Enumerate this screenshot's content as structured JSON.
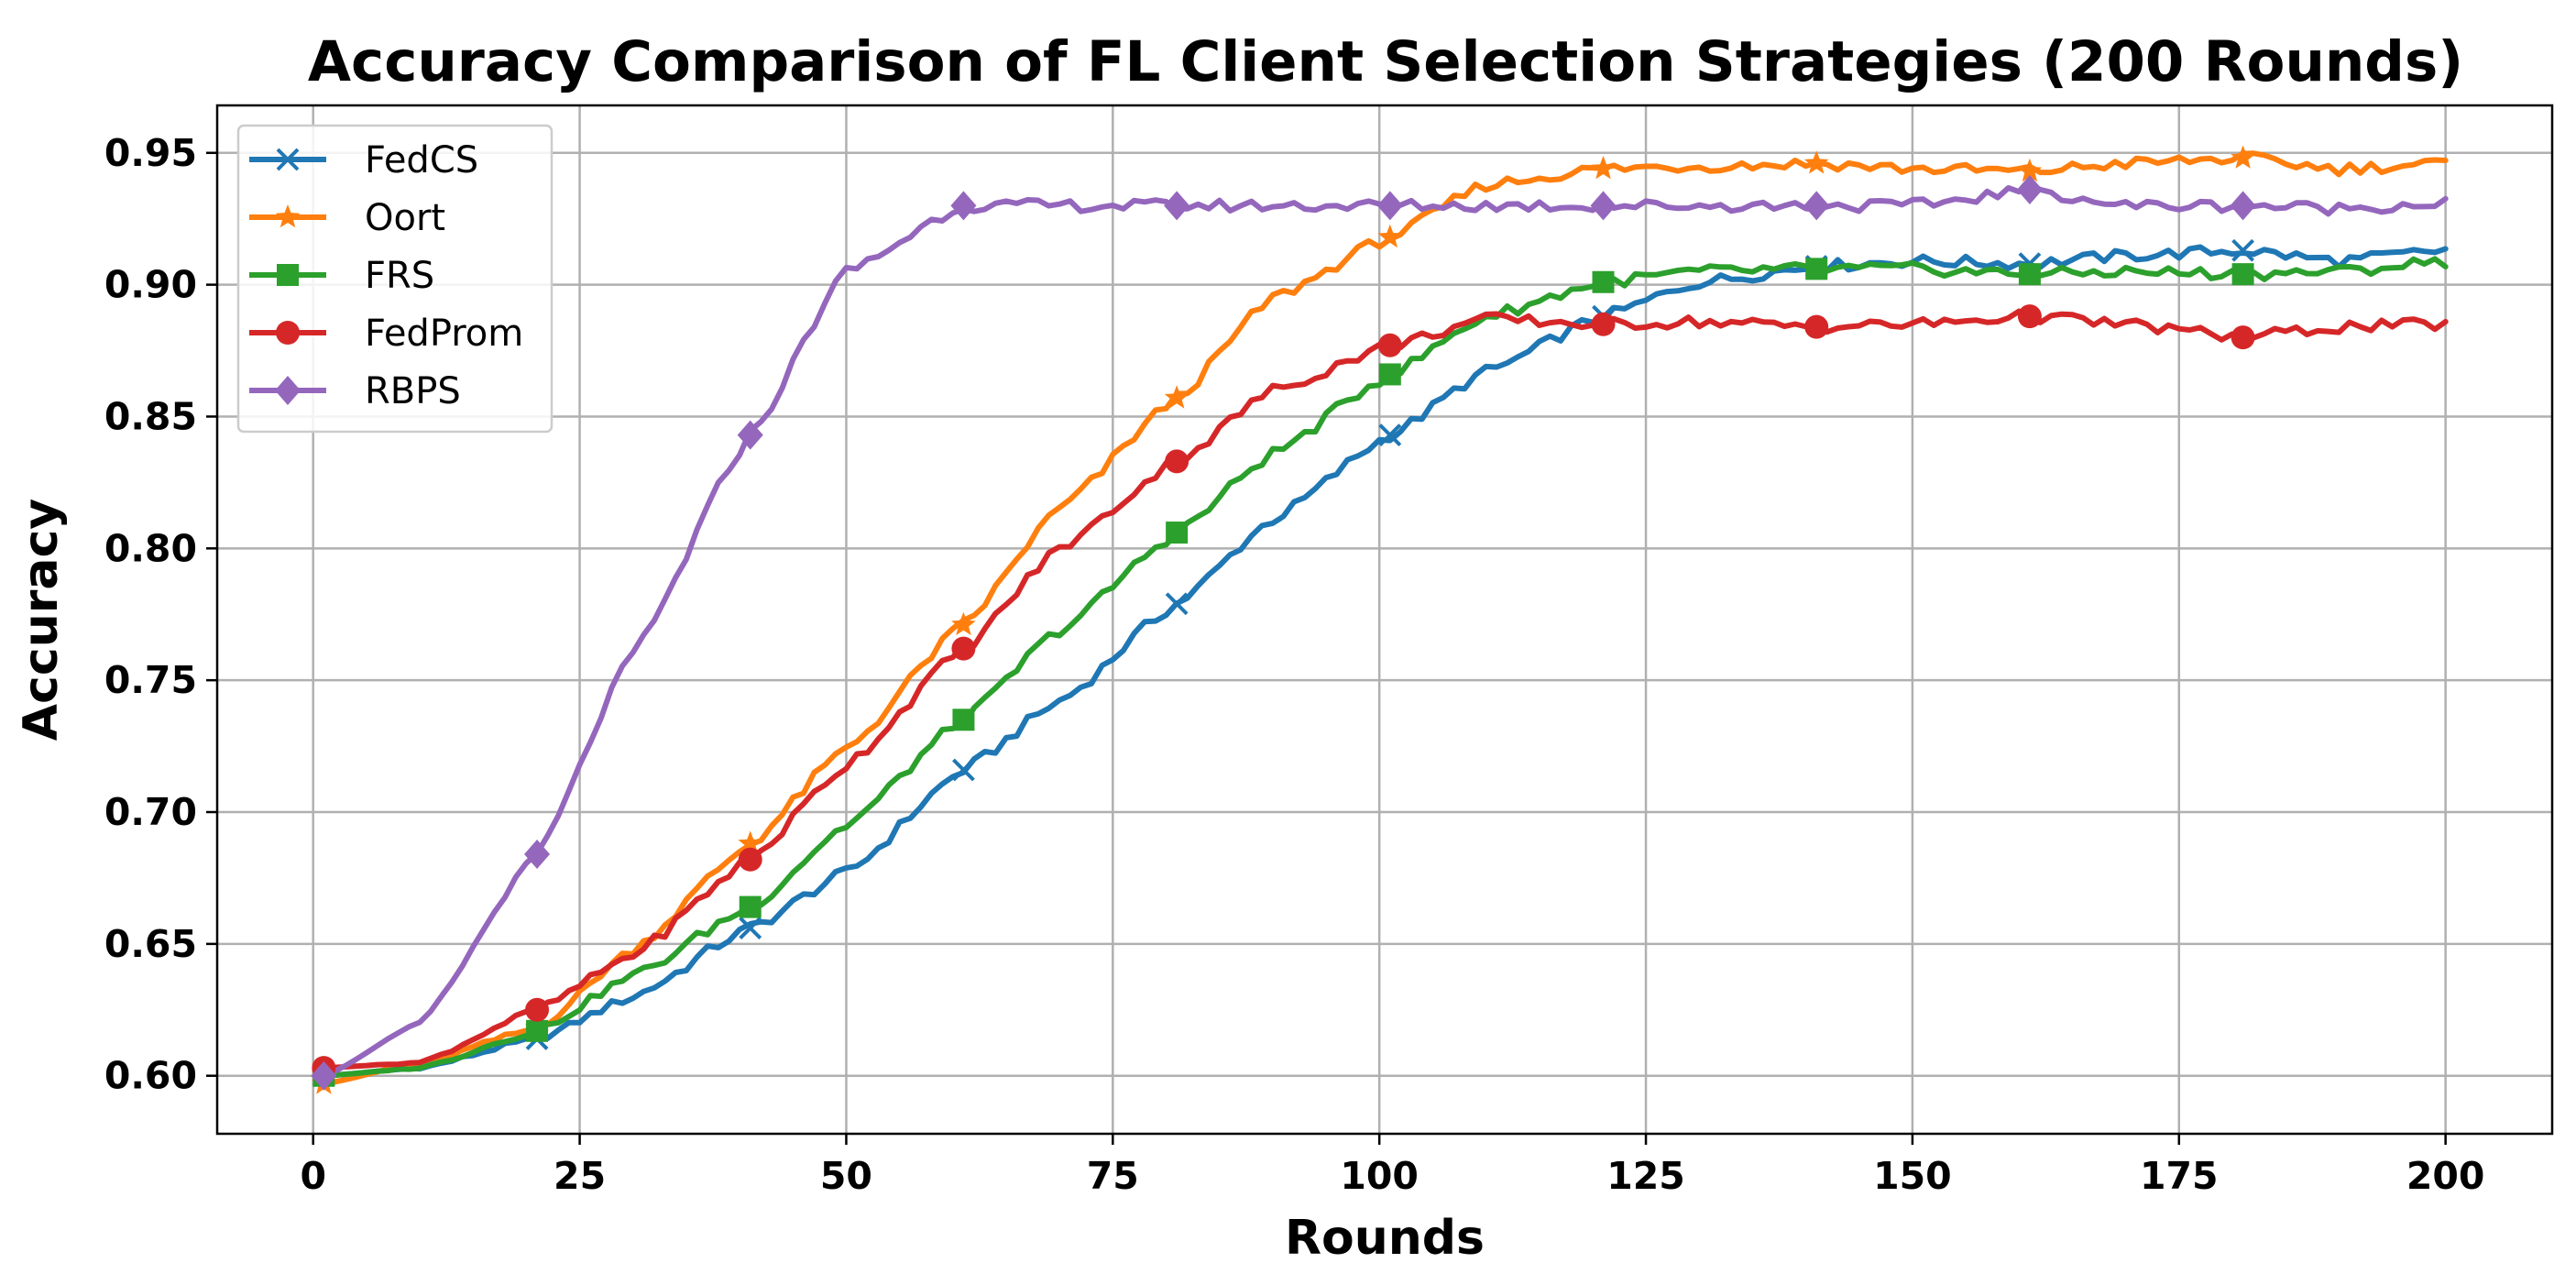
{
  "chart_data": {
    "type": "line",
    "title": "Accuracy Comparison of FL Client Selection Strategies (200 Rounds)",
    "xlabel": "Rounds",
    "ylabel": "Accuracy",
    "xlim": [
      -9,
      210
    ],
    "ylim": [
      0.578,
      0.968
    ],
    "xticks": [
      0,
      25,
      50,
      75,
      100,
      125,
      150,
      175,
      200
    ],
    "xtick_labels": [
      "0",
      "25",
      "50",
      "75",
      "100",
      "125",
      "150",
      "175",
      "200"
    ],
    "yticks": [
      0.6,
      0.65,
      0.7,
      0.75,
      0.8,
      0.85,
      0.9,
      0.95
    ],
    "ytick_labels": [
      "0.60",
      "0.65",
      "0.70",
      "0.75",
      "0.80",
      "0.85",
      "0.90",
      "0.95"
    ],
    "grid": true,
    "legend_position": "top-left",
    "marker_rounds": [
      1,
      21,
      41,
      61,
      81,
      101,
      121,
      141,
      161,
      181
    ],
    "series": [
      {
        "name": "FedCS",
        "color": "#1f77b4",
        "marker": "x",
        "x": [
          1,
          10,
          21,
          30,
          41,
          50,
          61,
          70,
          81,
          90,
          101,
          110,
          121,
          130,
          141,
          150,
          161,
          170,
          181,
          190,
          200
        ],
        "y": [
          0.6,
          0.603,
          0.614,
          0.63,
          0.656,
          0.677,
          0.716,
          0.742,
          0.779,
          0.811,
          0.843,
          0.867,
          0.888,
          0.901,
          0.907,
          0.909,
          0.908,
          0.911,
          0.913,
          0.909,
          0.913
        ]
      },
      {
        "name": "Oort",
        "color": "#ff7f0e",
        "marker": "star",
        "x": [
          1,
          10,
          21,
          30,
          41,
          50,
          61,
          70,
          81,
          90,
          101,
          110,
          121,
          130,
          141,
          150,
          161,
          170,
          181,
          190,
          200
        ],
        "y": [
          0.597,
          0.605,
          0.618,
          0.648,
          0.688,
          0.724,
          0.771,
          0.815,
          0.857,
          0.895,
          0.918,
          0.938,
          0.944,
          0.945,
          0.946,
          0.944,
          0.943,
          0.946,
          0.948,
          0.944,
          0.946
        ]
      },
      {
        "name": "FRS",
        "color": "#2ca02c",
        "marker": "square",
        "x": [
          1,
          10,
          21,
          30,
          41,
          50,
          61,
          70,
          81,
          90,
          101,
          110,
          121,
          130,
          141,
          150,
          161,
          170,
          181,
          190,
          200
        ],
        "y": [
          0.6,
          0.603,
          0.617,
          0.638,
          0.664,
          0.695,
          0.735,
          0.769,
          0.806,
          0.836,
          0.866,
          0.888,
          0.901,
          0.905,
          0.906,
          0.906,
          0.904,
          0.905,
          0.904,
          0.905,
          0.909
        ]
      },
      {
        "name": "FedProm",
        "color": "#d62728",
        "marker": "circle",
        "x": [
          1,
          10,
          21,
          30,
          41,
          50,
          61,
          70,
          81,
          90,
          101,
          110,
          121,
          130,
          141,
          150,
          161,
          170,
          181,
          190,
          200
        ],
        "y": [
          0.603,
          0.605,
          0.625,
          0.646,
          0.682,
          0.718,
          0.762,
          0.8,
          0.833,
          0.86,
          0.877,
          0.887,
          0.885,
          0.886,
          0.884,
          0.885,
          0.888,
          0.885,
          0.88,
          0.884,
          0.885
        ]
      },
      {
        "name": "RBPS",
        "color": "#9467bd",
        "marker": "diamond",
        "x": [
          1,
          10,
          21,
          30,
          41,
          50,
          61,
          70,
          81,
          90,
          101,
          110,
          121,
          130,
          141,
          150,
          161,
          170,
          181,
          190,
          200
        ],
        "y": [
          0.6,
          0.62,
          0.684,
          0.76,
          0.843,
          0.905,
          0.93,
          0.93,
          0.93,
          0.93,
          0.93,
          0.93,
          0.93,
          0.93,
          0.93,
          0.93,
          0.936,
          0.93,
          0.93,
          0.929,
          0.931
        ]
      }
    ]
  }
}
